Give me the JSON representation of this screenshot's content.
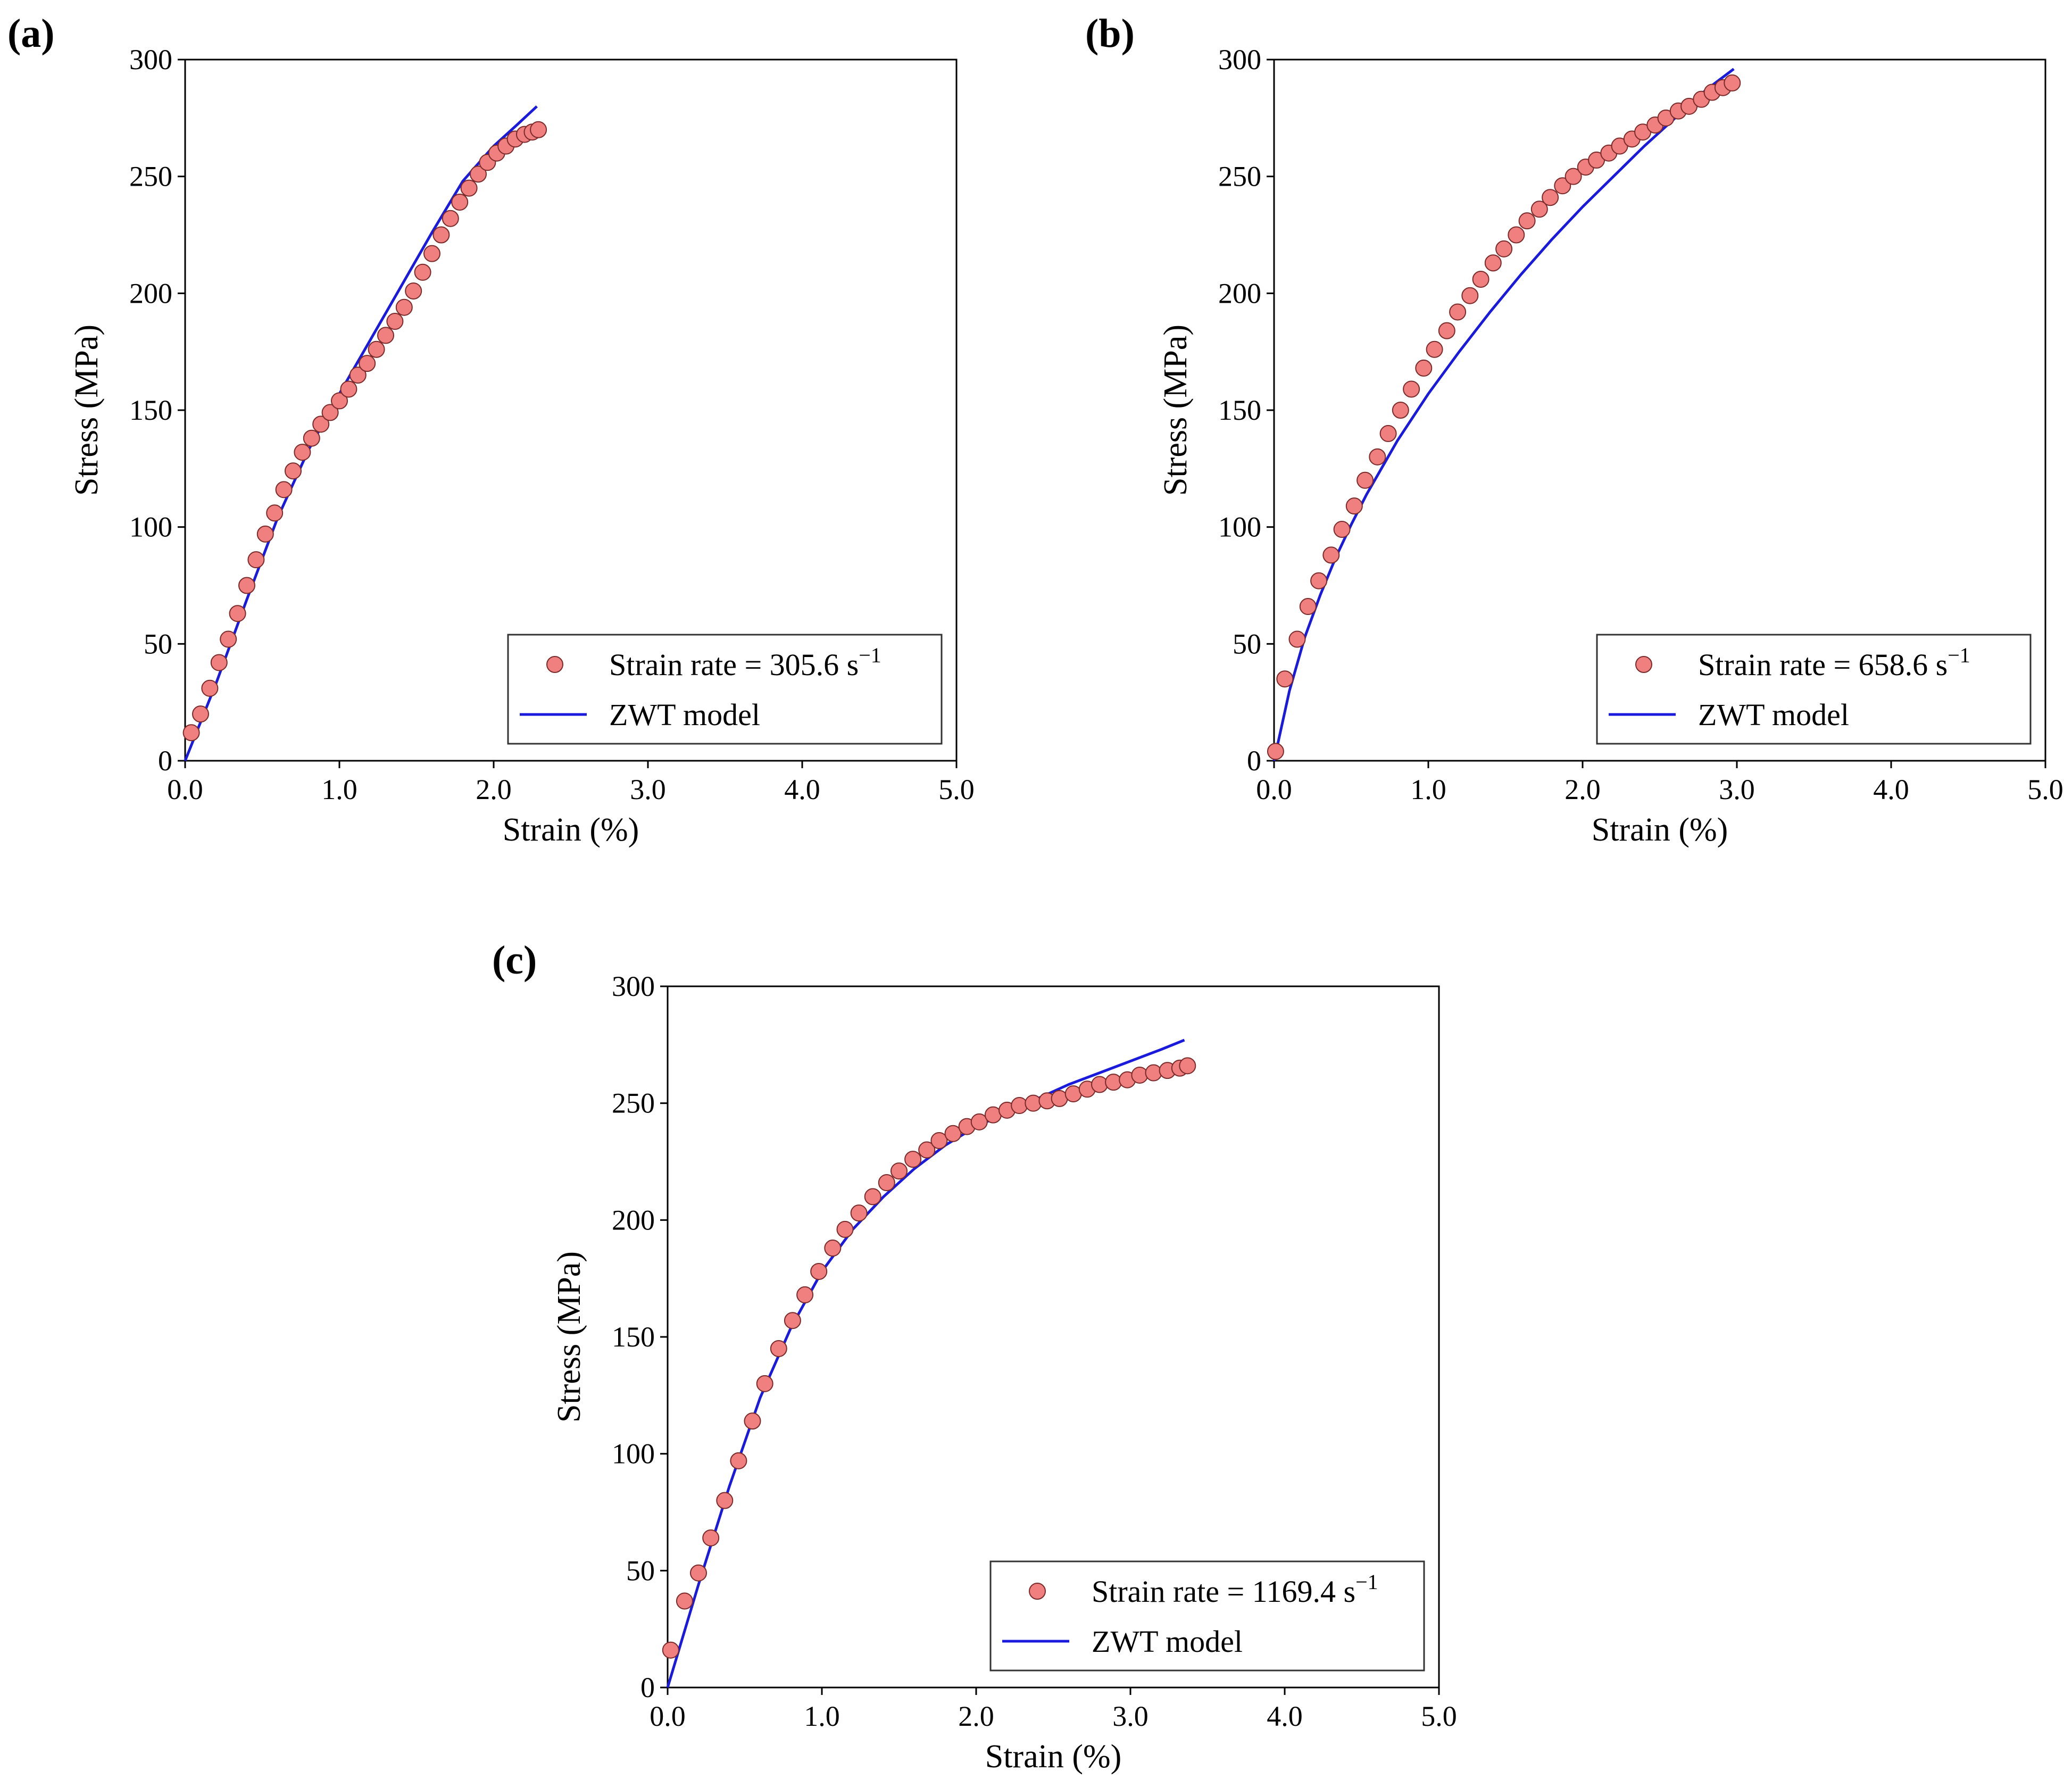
{
  "figure": {
    "panels": [
      {
        "id": "a",
        "label": "(a)"
      },
      {
        "id": "b",
        "label": "(b)"
      },
      {
        "id": "c",
        "label": "(c)"
      }
    ]
  },
  "chart_data": [
    {
      "type": "scatter",
      "panel_label": "(a)",
      "xlabel": "Strain (%)",
      "ylabel": "Stress (MPa)",
      "xlim": [
        0,
        5
      ],
      "ylim": [
        0,
        300
      ],
      "xticks": [
        "0.0",
        "1.0",
        "2.0",
        "3.0",
        "4.0",
        "5.0"
      ],
      "yticks": [
        "0",
        "50",
        "100",
        "150",
        "200",
        "250",
        "300"
      ],
      "legend_position": "lower-right",
      "colors": {
        "scatter_fill": "#f07f7f",
        "scatter_edge": "#7a2a2a",
        "line": "#1a1adc"
      },
      "series": [
        {
          "name": "Strain rate = 305.6 s",
          "name_prefix": "Strain rate = 305.6 s",
          "name_superscript": "−1",
          "kind": "scatter",
          "x": [
            0.04,
            0.1,
            0.16,
            0.22,
            0.28,
            0.34,
            0.4,
            0.46,
            0.52,
            0.58,
            0.64,
            0.7,
            0.76,
            0.82,
            0.88,
            0.94,
            1.0,
            1.06,
            1.12,
            1.18,
            1.24,
            1.3,
            1.36,
            1.42,
            1.48,
            1.54,
            1.6,
            1.66,
            1.72,
            1.78,
            1.84,
            1.9,
            1.96,
            2.02,
            2.08,
            2.14,
            2.2,
            2.25,
            2.29
          ],
          "y": [
            12,
            20,
            31,
            42,
            52,
            63,
            75,
            86,
            97,
            106,
            116,
            124,
            132,
            138,
            144,
            149,
            154,
            159,
            165,
            170,
            176,
            182,
            188,
            194,
            201,
            209,
            217,
            225,
            232,
            239,
            245,
            251,
            256,
            260,
            263,
            266,
            268,
            269,
            270
          ]
        },
        {
          "name": "ZWT model",
          "kind": "line",
          "x": [
            0,
            0.2,
            0.4,
            0.6,
            0.8,
            1.0,
            1.2,
            1.4,
            1.6,
            1.8,
            2.0,
            2.15,
            2.28
          ],
          "y": [
            0,
            33,
            69,
            104,
            133,
            157,
            180,
            203,
            226,
            248,
            263,
            272,
            280
          ]
        }
      ]
    },
    {
      "type": "scatter",
      "panel_label": "(b)",
      "xlabel": "Strain (%)",
      "ylabel": "Stress (MPa)",
      "xlim": [
        0,
        5
      ],
      "ylim": [
        0,
        300
      ],
      "xticks": [
        "0.0",
        "1.0",
        "2.0",
        "3.0",
        "4.0",
        "5.0"
      ],
      "yticks": [
        "0",
        "50",
        "100",
        "150",
        "200",
        "250",
        "300"
      ],
      "legend_position": "lower-right",
      "colors": {
        "scatter_fill": "#f07f7f",
        "scatter_edge": "#7a2a2a",
        "line": "#1a1adc"
      },
      "series": [
        {
          "name": "Strain rate = 658.6 s",
          "name_prefix": "Strain rate = 658.6 s",
          "name_superscript": "−1",
          "kind": "scatter",
          "x": [
            0.01,
            0.07,
            0.15,
            0.22,
            0.29,
            0.37,
            0.44,
            0.52,
            0.59,
            0.67,
            0.74,
            0.82,
            0.89,
            0.97,
            1.04,
            1.12,
            1.19,
            1.27,
            1.34,
            1.42,
            1.49,
            1.57,
            1.64,
            1.72,
            1.79,
            1.87,
            1.94,
            2.02,
            2.09,
            2.17,
            2.24,
            2.32,
            2.39,
            2.47,
            2.54,
            2.62,
            2.69,
            2.77,
            2.84,
            2.91,
            2.97
          ],
          "y": [
            4,
            35,
            52,
            66,
            77,
            88,
            99,
            109,
            120,
            130,
            140,
            150,
            159,
            168,
            176,
            184,
            192,
            199,
            206,
            213,
            219,
            225,
            231,
            236,
            241,
            246,
            250,
            254,
            257,
            260,
            263,
            266,
            269,
            272,
            275,
            278,
            280,
            283,
            286,
            288,
            290
          ]
        },
        {
          "name": "ZWT model",
          "kind": "line",
          "x": [
            0,
            0.1,
            0.2,
            0.3,
            0.4,
            0.5,
            0.6,
            0.8,
            1.0,
            1.2,
            1.4,
            1.6,
            1.8,
            2.0,
            2.2,
            2.4,
            2.6,
            2.8,
            2.98
          ],
          "y": [
            0,
            30,
            53,
            71,
            87,
            101,
            114,
            137,
            157,
            175,
            192,
            208,
            223,
            237,
            250,
            263,
            275,
            287,
            296
          ]
        }
      ]
    },
    {
      "type": "scatter",
      "panel_label": "(c)",
      "xlabel": "Strain (%)",
      "ylabel": "Stress (MPa)",
      "xlim": [
        0,
        5
      ],
      "ylim": [
        0,
        300
      ],
      "xticks": [
        "0.0",
        "1.0",
        "2.0",
        "3.0",
        "4.0",
        "5.0"
      ],
      "yticks": [
        "0",
        "50",
        "100",
        "150",
        "200",
        "250",
        "300"
      ],
      "legend_position": "lower-right",
      "colors": {
        "scatter_fill": "#f07f7f",
        "scatter_edge": "#7a2a2a",
        "line": "#1a1adc"
      },
      "series": [
        {
          "name": "Strain rate = 1169.4 s",
          "name_prefix": "Strain rate = 1169.4 s",
          "name_superscript": "−1",
          "kind": "scatter",
          "x": [
            0.02,
            0.11,
            0.2,
            0.28,
            0.37,
            0.46,
            0.55,
            0.63,
            0.72,
            0.81,
            0.89,
            0.98,
            1.07,
            1.15,
            1.24,
            1.33,
            1.42,
            1.5,
            1.59,
            1.68,
            1.76,
            1.85,
            1.94,
            2.02,
            2.11,
            2.2,
            2.28,
            2.37,
            2.46,
            2.54,
            2.63,
            2.72,
            2.8,
            2.89,
            2.98,
            3.06,
            3.15,
            3.24,
            3.32,
            3.37
          ],
          "y": [
            16,
            37,
            49,
            64,
            80,
            97,
            114,
            130,
            145,
            157,
            168,
            178,
            188,
            196,
            203,
            210,
            216,
            221,
            226,
            230,
            234,
            237,
            240,
            242,
            245,
            247,
            249,
            250,
            251,
            252,
            254,
            256,
            258,
            259,
            260,
            262,
            263,
            264,
            265,
            266
          ]
        },
        {
          "name": "ZWT model",
          "kind": "line",
          "x": [
            0,
            0.2,
            0.4,
            0.6,
            0.8,
            1.0,
            1.2,
            1.4,
            1.6,
            1.8,
            2.0,
            2.2,
            2.4,
            2.6,
            2.8,
            3.0,
            3.2,
            3.35
          ],
          "y": [
            0,
            44,
            86,
            124,
            154,
            178,
            196,
            210,
            222,
            232,
            240,
            246,
            252,
            258,
            263,
            268,
            273,
            277
          ]
        }
      ]
    }
  ]
}
